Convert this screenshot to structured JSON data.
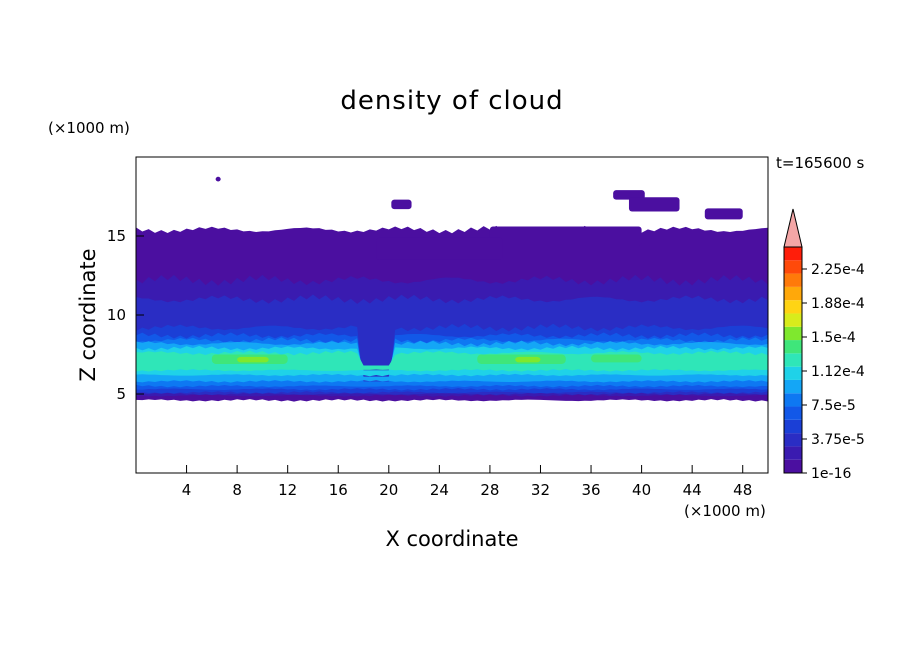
{
  "chart_data": {
    "type": "heatmap",
    "title": "density of cloud",
    "time_label": "t=165600 s",
    "xlabel": "X coordinate",
    "ylabel": "Z coordinate",
    "x_unit": "(×1000 m)",
    "y_unit": "(×1000 m)",
    "xlim": [
      0,
      50
    ],
    "ylim": [
      0,
      20
    ],
    "x_ticks": [
      4,
      8,
      12,
      16,
      20,
      24,
      28,
      32,
      36,
      40,
      44,
      48
    ],
    "y_ticks": [
      5,
      10,
      15
    ],
    "colorbar": {
      "labels": [
        "2.25e-4",
        "1.88e-4",
        "1.5e-4",
        "1.12e-4",
        "7.5e-5",
        "3.75e-5",
        "1e-16"
      ],
      "colors": [
        "#4b0fa0",
        "#3a1bb0",
        "#2a2dc4",
        "#1b3fd6",
        "#1258e8",
        "#0e78f2",
        "#14a6f6",
        "#1fd2e8",
        "#2fe6b8",
        "#3fe67a",
        "#7fe82e",
        "#d8ec1c",
        "#ffd414",
        "#ffa80a",
        "#ff7a0a",
        "#ff4a0a",
        "#ff1e0a"
      ],
      "extend_color": "#f4a6a6"
    },
    "levels_summary": [
      {
        "z_min": 4.6,
        "z_max": 5.0,
        "density": 1e-16
      },
      {
        "z_min": 5.0,
        "z_max": 5.6,
        "density": 3.75e-05
      },
      {
        "z_min": 5.6,
        "z_max": 6.2,
        "density": 7.5e-05
      },
      {
        "z_min": 6.2,
        "z_max": 7.8,
        "density": 0.000112
      },
      {
        "z_min": 7.8,
        "z_max": 8.6,
        "density": 7.5e-05
      },
      {
        "z_min": 8.6,
        "z_max": 11.0,
        "density": 3.75e-05
      },
      {
        "z_min": 11.0,
        "z_max": 15.4,
        "density": 1e-16
      }
    ],
    "peak_region": {
      "x_range": [
        6,
        12
      ],
      "z": 7.2,
      "density": 0.00015
    }
  }
}
